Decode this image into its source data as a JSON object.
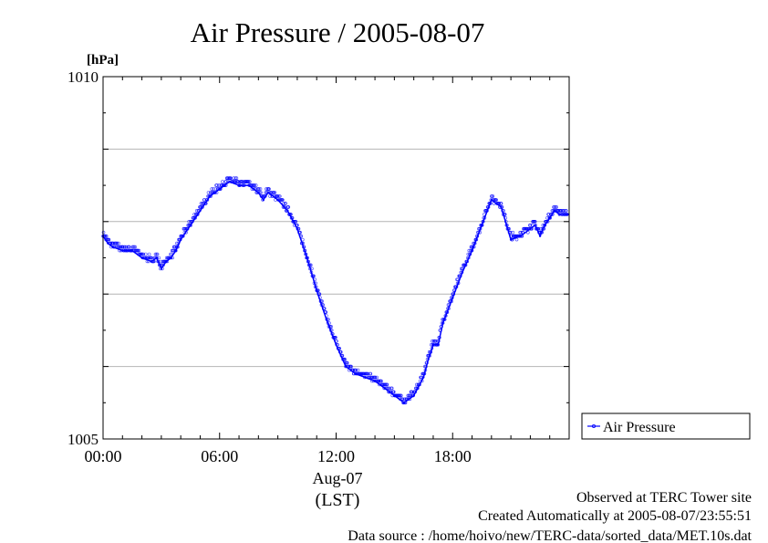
{
  "colors": {
    "series": "#0000ff",
    "grid": "#b4b4b4",
    "axis": "#000000"
  },
  "chart_data": {
    "type": "line",
    "title": "Air Pressure / 2005-08-07",
    "ylabel": "[hPa]",
    "xlabel": "(LST)",
    "date_label": "Aug-07",
    "ylim": [
      1005,
      1010
    ],
    "xlim": [
      "2005-08-07 00:00",
      "2005-08-07 23:55"
    ],
    "y_tick_labels": [
      {
        "value": 1005,
        "label": "1005"
      },
      {
        "value": 1010,
        "label": "1010"
      }
    ],
    "y_gridlines": [
      1006,
      1007,
      1008,
      1009
    ],
    "x_ticks": [
      {
        "time": "00:00",
        "label": "00:00"
      },
      {
        "time": "06:00",
        "label": "06:00"
      },
      {
        "time": "12:00",
        "label": "12:00"
      },
      {
        "time": "18:00",
        "label": "18:00"
      }
    ],
    "legend": {
      "position": "right",
      "entries": [
        "Air Pressure"
      ]
    },
    "series": [
      {
        "name": "Air Pressure",
        "x": [
          "00:00",
          "00:15",
          "00:30",
          "01:00",
          "01:30",
          "02:00",
          "02:30",
          "02:45",
          "03:00",
          "03:15",
          "03:30",
          "03:45",
          "04:00",
          "04:30",
          "05:00",
          "05:30",
          "06:00",
          "06:30",
          "07:00",
          "07:30",
          "08:00",
          "08:15",
          "08:30",
          "09:00",
          "09:30",
          "10:00",
          "10:30",
          "11:00",
          "11:30",
          "12:00",
          "12:30",
          "13:00",
          "13:30",
          "14:00",
          "14:30",
          "15:00",
          "15:30",
          "16:00",
          "16:30",
          "16:45",
          "17:00",
          "17:15",
          "17:30",
          "18:00",
          "18:30",
          "19:00",
          "19:30",
          "20:00",
          "20:30",
          "21:00",
          "21:30",
          "22:00",
          "22:15",
          "22:30",
          "22:45",
          "23:00",
          "23:15",
          "23:30",
          "23:55"
        ],
        "values": [
          1007.8,
          1007.7,
          1007.65,
          1007.6,
          1007.6,
          1007.5,
          1007.45,
          1007.5,
          1007.35,
          1007.45,
          1007.5,
          1007.6,
          1007.75,
          1007.95,
          1008.15,
          1008.35,
          1008.45,
          1008.55,
          1008.5,
          1008.5,
          1008.4,
          1008.3,
          1008.4,
          1008.3,
          1008.15,
          1007.9,
          1007.5,
          1007.05,
          1006.65,
          1006.3,
          1006.0,
          1005.9,
          1005.85,
          1005.8,
          1005.7,
          1005.6,
          1005.5,
          1005.6,
          1005.85,
          1006.1,
          1006.3,
          1006.3,
          1006.6,
          1006.95,
          1007.3,
          1007.6,
          1007.95,
          1008.3,
          1008.2,
          1007.75,
          1007.8,
          1007.9,
          1007.95,
          1007.8,
          1007.95,
          1008.05,
          1008.15,
          1008.1,
          1008.1
        ]
      }
    ]
  },
  "footer": {
    "observed": "Observed at TERC Tower site",
    "created": "Created Automatically at 2005-08-07/23:55:51",
    "source": "Data source : /home/hoivo/new/TERC-data/sorted_data/MET.10s.dat"
  }
}
